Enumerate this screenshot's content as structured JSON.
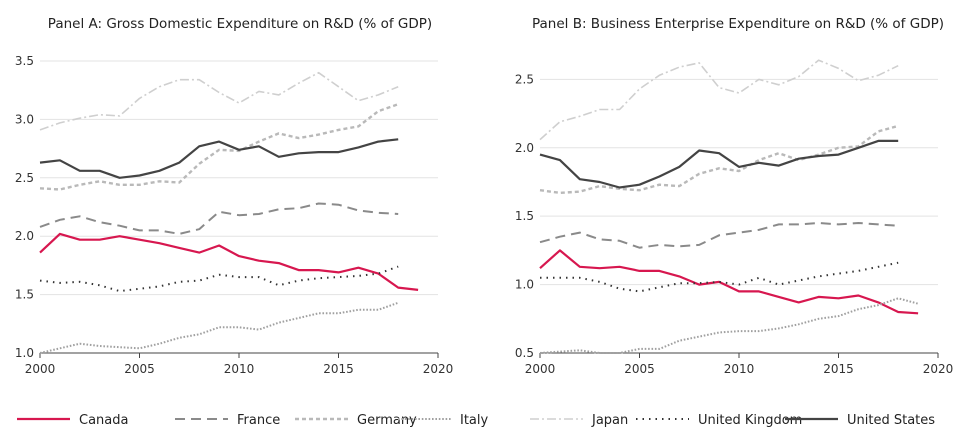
{
  "colors": {
    "Canada": "#d7174f",
    "France": "#8a8a8a",
    "Germany": "#b9b9b9",
    "Italy": "#a0a0a0",
    "Japan": "#cfcfcf",
    "United Kingdom": "#333333",
    "United States": "#444444"
  },
  "chart_data": [
    {
      "type": "line",
      "title": "Panel A: Gross Domestic Expenditure on R&D (% of GDP)",
      "xlim": [
        2000,
        2020
      ],
      "ylim": [
        1.0,
        3.5
      ],
      "xticks": [
        "2000",
        "2005",
        "2010",
        "2015",
        "2020"
      ],
      "yticks": [
        "1.0",
        "1.5",
        "2.0",
        "2.5",
        "3.0",
        "3.5"
      ],
      "grid": true,
      "series": [
        {
          "name": "Canada",
          "x": [
            2000,
            2001,
            2002,
            2003,
            2004,
            2005,
            2006,
            2007,
            2008,
            2009,
            2010,
            2011,
            2012,
            2013,
            2014,
            2015,
            2016,
            2017,
            2018,
            2019
          ],
          "values": [
            1.86,
            2.02,
            1.97,
            1.97,
            2.0,
            1.97,
            1.94,
            1.9,
            1.86,
            1.92,
            1.83,
            1.79,
            1.77,
            1.71,
            1.71,
            1.69,
            1.73,
            1.68,
            1.56,
            1.54
          ]
        },
        {
          "name": "France",
          "x": [
            2000,
            2001,
            2002,
            2003,
            2004,
            2005,
            2006,
            2007,
            2008,
            2009,
            2010,
            2011,
            2012,
            2013,
            2014,
            2015,
            2016,
            2017,
            2018
          ],
          "values": [
            2.08,
            2.14,
            2.17,
            2.12,
            2.09,
            2.05,
            2.05,
            2.02,
            2.06,
            2.21,
            2.18,
            2.19,
            2.23,
            2.24,
            2.28,
            2.27,
            2.22,
            2.2,
            2.19
          ]
        },
        {
          "name": "Germany",
          "x": [
            2000,
            2001,
            2002,
            2003,
            2004,
            2005,
            2006,
            2007,
            2008,
            2009,
            2010,
            2011,
            2012,
            2013,
            2014,
            2015,
            2016,
            2017,
            2018
          ],
          "values": [
            2.41,
            2.4,
            2.44,
            2.47,
            2.44,
            2.44,
            2.47,
            2.46,
            2.62,
            2.74,
            2.73,
            2.81,
            2.88,
            2.84,
            2.87,
            2.91,
            2.94,
            3.07,
            3.13
          ]
        },
        {
          "name": "Italy",
          "x": [
            2000,
            2001,
            2002,
            2003,
            2004,
            2005,
            2006,
            2007,
            2008,
            2009,
            2010,
            2011,
            2012,
            2013,
            2014,
            2015,
            2016,
            2017,
            2018
          ],
          "values": [
            1.0,
            1.04,
            1.08,
            1.06,
            1.05,
            1.04,
            1.08,
            1.13,
            1.16,
            1.22,
            1.22,
            1.2,
            1.26,
            1.3,
            1.34,
            1.34,
            1.37,
            1.37,
            1.43
          ]
        },
        {
          "name": "Japan",
          "x": [
            2000,
            2001,
            2002,
            2003,
            2004,
            2005,
            2006,
            2007,
            2008,
            2009,
            2010,
            2011,
            2012,
            2013,
            2014,
            2015,
            2016,
            2017,
            2018
          ],
          "values": [
            2.91,
            2.97,
            3.01,
            3.04,
            3.03,
            3.18,
            3.28,
            3.34,
            3.34,
            3.23,
            3.14,
            3.24,
            3.21,
            3.31,
            3.4,
            3.28,
            3.16,
            3.21,
            3.28
          ]
        },
        {
          "name": "United Kingdom",
          "x": [
            2000,
            2001,
            2002,
            2003,
            2004,
            2005,
            2006,
            2007,
            2008,
            2009,
            2010,
            2011,
            2012,
            2013,
            2014,
            2015,
            2016,
            2017,
            2018
          ],
          "values": [
            1.62,
            1.6,
            1.61,
            1.58,
            1.53,
            1.55,
            1.57,
            1.61,
            1.62,
            1.67,
            1.65,
            1.65,
            1.58,
            1.62,
            1.64,
            1.65,
            1.66,
            1.68,
            1.74
          ]
        },
        {
          "name": "United States",
          "x": [
            2000,
            2001,
            2002,
            2003,
            2004,
            2005,
            2006,
            2007,
            2008,
            2009,
            2010,
            2011,
            2012,
            2013,
            2014,
            2015,
            2016,
            2017,
            2018
          ],
          "values": [
            2.63,
            2.65,
            2.56,
            2.56,
            2.5,
            2.52,
            2.56,
            2.63,
            2.77,
            2.81,
            2.74,
            2.77,
            2.68,
            2.71,
            2.72,
            2.72,
            2.76,
            2.81,
            2.83
          ]
        }
      ]
    },
    {
      "type": "line",
      "title": "Panel B: Business Enterprise Expenditure on R&D (% of GDP)",
      "xlim": [
        2000,
        2020
      ],
      "ylim": [
        0.5,
        2.7
      ],
      "xticks": [
        "2000",
        "2005",
        "2010",
        "2015",
        "2020"
      ],
      "yticks": [
        "0.5",
        "1.0",
        "1.5",
        "2.0",
        "2.5"
      ],
      "grid": true,
      "series": [
        {
          "name": "Canada",
          "x": [
            2000,
            2001,
            2002,
            2003,
            2004,
            2005,
            2006,
            2007,
            2008,
            2009,
            2010,
            2011,
            2012,
            2013,
            2014,
            2015,
            2016,
            2017,
            2018,
            2019
          ],
          "values": [
            1.12,
            1.25,
            1.13,
            1.12,
            1.13,
            1.1,
            1.1,
            1.06,
            1.0,
            1.02,
            0.95,
            0.95,
            0.91,
            0.87,
            0.91,
            0.9,
            0.92,
            0.87,
            0.8,
            0.79
          ]
        },
        {
          "name": "France",
          "x": [
            2000,
            2001,
            2002,
            2003,
            2004,
            2005,
            2006,
            2007,
            2008,
            2009,
            2010,
            2011,
            2012,
            2013,
            2014,
            2015,
            2016,
            2017,
            2018
          ],
          "values": [
            1.31,
            1.35,
            1.38,
            1.33,
            1.32,
            1.27,
            1.29,
            1.28,
            1.29,
            1.36,
            1.38,
            1.4,
            1.44,
            1.44,
            1.45,
            1.44,
            1.45,
            1.44,
            1.43
          ]
        },
        {
          "name": "Germany",
          "x": [
            2000,
            2001,
            2002,
            2003,
            2004,
            2005,
            2006,
            2007,
            2008,
            2009,
            2010,
            2011,
            2012,
            2013,
            2014,
            2015,
            2016,
            2017,
            2018
          ],
          "values": [
            1.69,
            1.67,
            1.68,
            1.72,
            1.7,
            1.69,
            1.73,
            1.72,
            1.81,
            1.85,
            1.83,
            1.91,
            1.96,
            1.91,
            1.95,
            2.0,
            2.01,
            2.12,
            2.16
          ]
        },
        {
          "name": "Italy",
          "x": [
            2000,
            2001,
            2002,
            2003,
            2004,
            2005,
            2006,
            2007,
            2008,
            2009,
            2010,
            2011,
            2012,
            2013,
            2014,
            2015,
            2016,
            2017,
            2018,
            2019
          ],
          "values": [
            0.5,
            0.51,
            0.52,
            0.5,
            0.5,
            0.53,
            0.53,
            0.59,
            0.62,
            0.65,
            0.66,
            0.66,
            0.68,
            0.71,
            0.75,
            0.77,
            0.82,
            0.85,
            0.9,
            0.86
          ]
        },
        {
          "name": "Japan",
          "x": [
            2000,
            2001,
            2002,
            2003,
            2004,
            2005,
            2006,
            2007,
            2008,
            2009,
            2010,
            2011,
            2012,
            2013,
            2014,
            2015,
            2016,
            2017,
            2018
          ],
          "values": [
            2.06,
            2.19,
            2.23,
            2.28,
            2.28,
            2.43,
            2.53,
            2.59,
            2.62,
            2.44,
            2.4,
            2.5,
            2.46,
            2.52,
            2.64,
            2.58,
            2.49,
            2.53,
            2.6
          ]
        },
        {
          "name": "United Kingdom",
          "x": [
            2000,
            2001,
            2002,
            2003,
            2004,
            2005,
            2006,
            2007,
            2008,
            2009,
            2010,
            2011,
            2012,
            2013,
            2014,
            2015,
            2016,
            2017,
            2018
          ],
          "values": [
            1.05,
            1.05,
            1.05,
            1.02,
            0.97,
            0.95,
            0.98,
            1.01,
            1.01,
            1.02,
            1.0,
            1.05,
            1.0,
            1.03,
            1.06,
            1.08,
            1.1,
            1.13,
            1.16
          ]
        },
        {
          "name": "United States",
          "x": [
            2000,
            2001,
            2002,
            2003,
            2004,
            2005,
            2006,
            2007,
            2008,
            2009,
            2010,
            2011,
            2012,
            2013,
            2014,
            2015,
            2016,
            2017,
            2018
          ],
          "values": [
            1.95,
            1.91,
            1.77,
            1.75,
            1.71,
            1.73,
            1.79,
            1.86,
            1.98,
            1.96,
            1.86,
            1.89,
            1.87,
            1.92,
            1.94,
            1.95,
            2.0,
            2.05,
            2.05
          ]
        }
      ]
    }
  ],
  "legend": {
    "placement": "bottom",
    "items": [
      "Canada",
      "France",
      "Germany",
      "Italy",
      "Japan",
      "United Kingdom",
      "United States"
    ]
  }
}
